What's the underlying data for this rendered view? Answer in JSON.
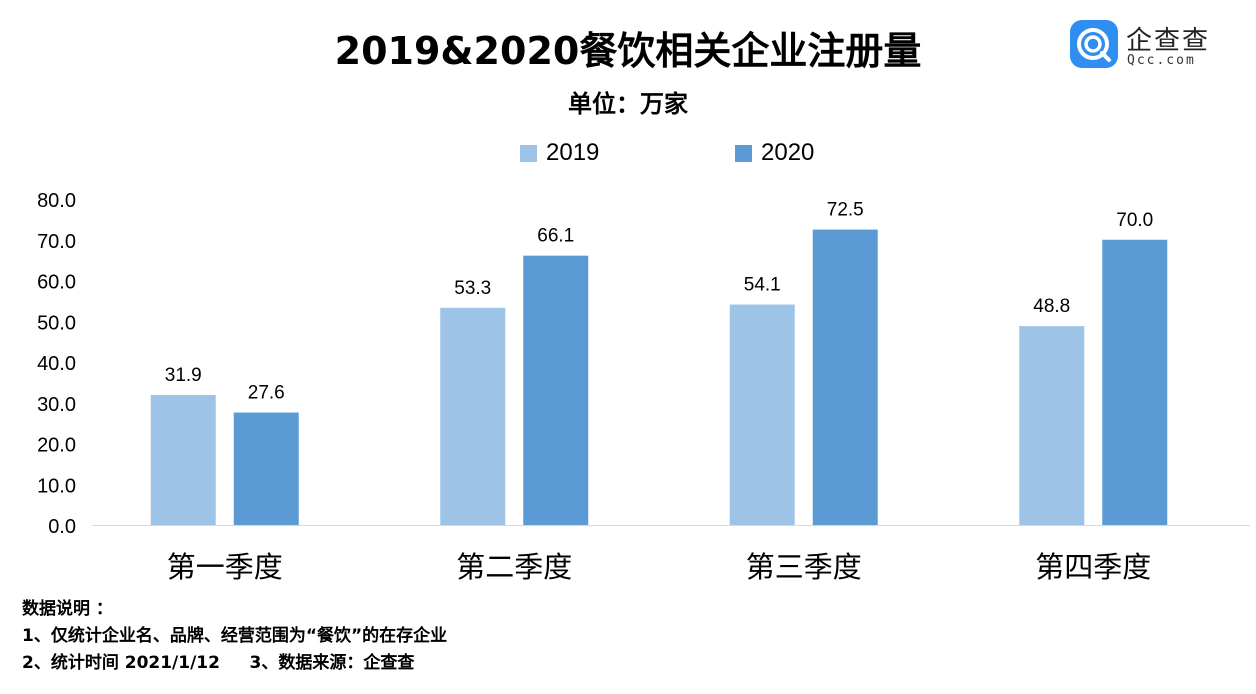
{
  "chart_data": {
    "type": "bar",
    "title": "2019&2020餐饮相关企业注册量",
    "subtitle": "单位：万家",
    "categories": [
      "第一季度",
      "第二季度",
      "第三季度",
      "第四季度"
    ],
    "series": [
      {
        "name": "2019",
        "values": [
          31.9,
          53.3,
          54.1,
          48.8
        ],
        "labels": [
          "31.9",
          "53.3",
          "54.1",
          "48.8"
        ],
        "color": "#9dc3e6"
      },
      {
        "name": "2020",
        "values": [
          27.6,
          66.1,
          72.5,
          70.0
        ],
        "labels": [
          "27.6",
          "66.1",
          "72.5",
          "70.0"
        ],
        "color": "#5b9bd5"
      }
    ],
    "ylim": [
      0,
      80
    ],
    "yticks": [
      "0.0",
      "10.0",
      "20.0",
      "30.0",
      "40.0",
      "50.0",
      "60.0",
      "70.0",
      "80.0"
    ],
    "grid": false,
    "legend_position": "top-center",
    "xlabel": "",
    "ylabel": ""
  },
  "logo": {
    "name": "企查查",
    "domain": "Qcc.com",
    "color": "#2f8ef0"
  },
  "notes": {
    "heading": "数据说明 ：",
    "line1": "1、仅统计企业名、品牌、经营范围为“餐饮”的在存企业",
    "line2": "2、统计时间 2021/1/12     3、数据来源：企查查"
  }
}
